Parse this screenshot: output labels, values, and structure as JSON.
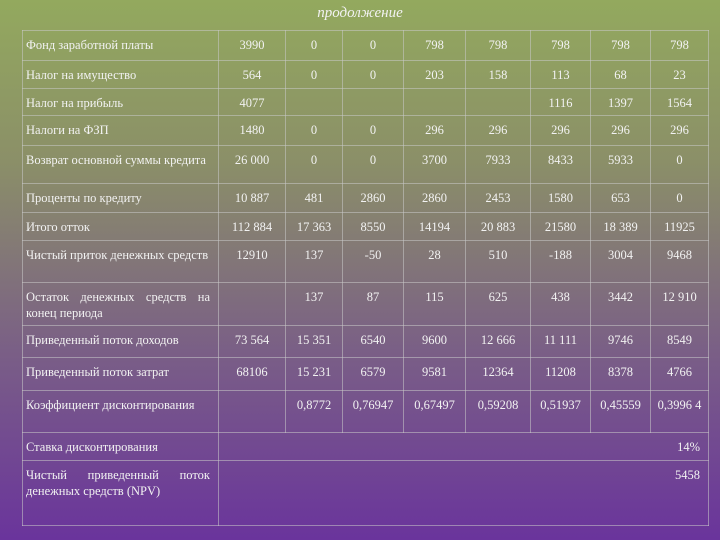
{
  "title": "продолжение",
  "table": {
    "rows": [
      {
        "label": "Фонд заработной платы",
        "values": [
          "3990",
          "0",
          "0",
          "798",
          "798",
          "798",
          "798",
          "798"
        ]
      },
      {
        "label": "Налог на имущество",
        "values": [
          "564",
          "0",
          "0",
          "203",
          "158",
          "113",
          "68",
          "23"
        ]
      },
      {
        "label": "Налог на прибыль",
        "values": [
          "4077",
          null,
          null,
          null,
          null,
          "1116",
          "1397",
          "1564"
        ]
      },
      {
        "label": "Налоги на ФЗП",
        "values": [
          "1480",
          "0",
          "0",
          "296",
          "296",
          "296",
          "296",
          "296"
        ]
      },
      {
        "label": "Возврат основной суммы кредита",
        "values": [
          "26 000",
          "0",
          "0",
          "3700",
          "7933",
          "8433",
          "5933",
          "0"
        ]
      },
      {
        "label": "Проценты по кредиту",
        "values": [
          "10 887",
          "481",
          "2860",
          "2860",
          "2453",
          "1580",
          "653",
          "0"
        ]
      },
      {
        "label": "Итого отток",
        "values": [
          "112 884",
          "17 363",
          "8550",
          "14194",
          "20 883",
          "21580",
          "18 389",
          "11925"
        ]
      },
      {
        "label": "Чистый приток денежных средств",
        "values": [
          "12910",
          "137",
          "-50",
          "28",
          "510",
          "-188",
          "3004",
          "9468"
        ]
      },
      {
        "label": "Остаток денежных средств на конец периода",
        "values": [
          null,
          "137",
          "87",
          "115",
          "625",
          "438",
          "3442",
          "12 910"
        ]
      },
      {
        "label": "Приведенный поток доходов",
        "values": [
          "73 564",
          "15 351",
          "6540",
          "9600",
          "12 666",
          "11 111",
          "9746",
          "8549"
        ]
      },
      {
        "label": "Приведенный поток затрат",
        "values": [
          "68106",
          "15 231",
          "6579",
          "9581",
          "12364",
          "11208",
          "8378",
          "4766"
        ]
      },
      {
        "label": "Коэффициент дисконтирования",
        "values": [
          null,
          "0,8772",
          "0,76947",
          "0,67497",
          "0,59208",
          "0,51937",
          "0,45559",
          "0,3996 4"
        ]
      },
      {
        "label": "Ставка дисконтирования",
        "value": "14%"
      },
      {
        "label": "Чистый приведенный поток денежных средств (NPV)",
        "value": "5458"
      }
    ]
  }
}
